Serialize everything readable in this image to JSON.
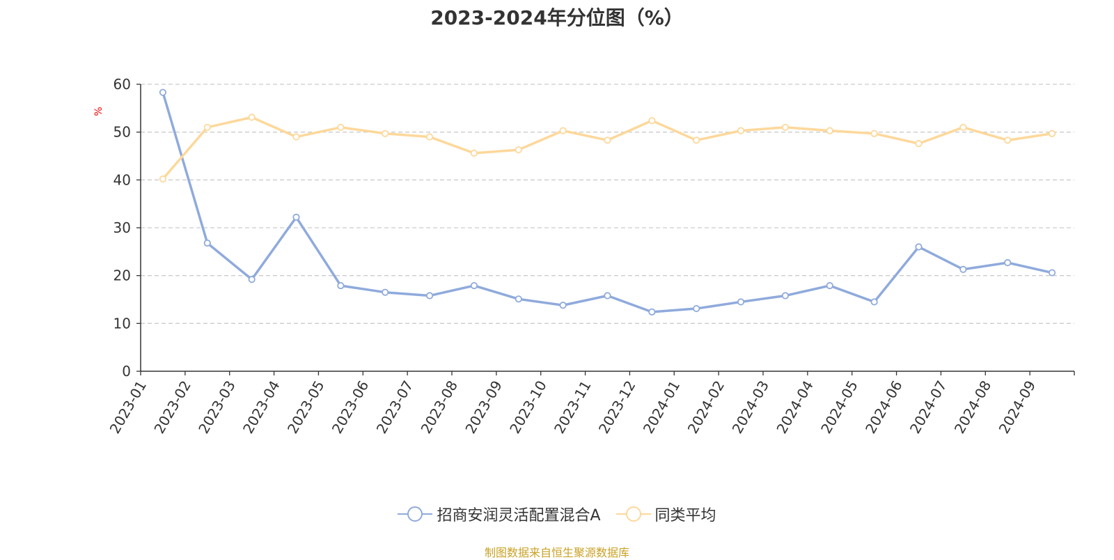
{
  "title": "2023-2024年分位图（%）",
  "source": "制图数据来自恒生聚源数据库",
  "colors": {
    "series1": "#8faadc",
    "series2": "#fdd89b",
    "ylabel": "#ff0000",
    "source": "#c9a227",
    "axis": "#333333",
    "grid": "#cccccc"
  },
  "chart_data": {
    "type": "line",
    "title": "2023-2024年分位图（%）",
    "xlabel": "",
    "ylabel": "%",
    "ylim": [
      0,
      60
    ],
    "yticks": [
      0,
      10,
      20,
      30,
      40,
      50,
      60
    ],
    "grid": true,
    "legend_position": "bottom",
    "categories": [
      "2023-01",
      "2023-02",
      "2023-03",
      "2023-04",
      "2023-05",
      "2023-06",
      "2023-07",
      "2023-08",
      "2023-09",
      "2023-10",
      "2023-11",
      "2023-12",
      "2024-01",
      "2024-02",
      "2024-03",
      "2024-04",
      "2024-05",
      "2024-06",
      "2024-07",
      "2024-08",
      "2024-09"
    ],
    "series": [
      {
        "name": "招商安润灵活配置混合A",
        "values": [
          58.3,
          26.8,
          19.2,
          32.2,
          17.9,
          16.5,
          15.8,
          17.9,
          15.1,
          13.8,
          15.8,
          12.4,
          13.1,
          14.5,
          15.8,
          17.9,
          14.5,
          26.0,
          21.3,
          22.7,
          20.6
        ]
      },
      {
        "name": "同类平均",
        "values": [
          40.2,
          51.0,
          53.1,
          49.0,
          51.0,
          49.7,
          49.0,
          45.6,
          46.3,
          50.3,
          48.3,
          52.4,
          48.3,
          50.3,
          51.0,
          50.3,
          49.7,
          47.6,
          51.0,
          48.3,
          49.7
        ]
      }
    ]
  }
}
